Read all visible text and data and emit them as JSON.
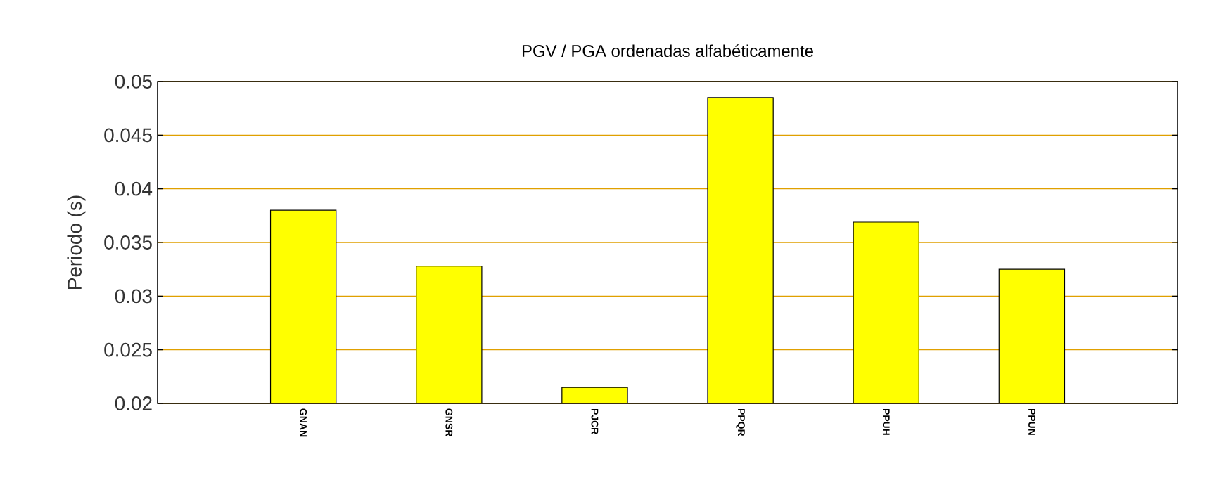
{
  "chart_data": {
    "type": "bar",
    "title": "PGV / PGA ordenadas alfabéticamente",
    "ylabel": "Periodo (s)",
    "categories": [
      "GNAN",
      "GNSR",
      "PJCR",
      "PPQR",
      "PPUH",
      "PPUN"
    ],
    "values": [
      0.038,
      0.0328,
      0.0215,
      0.0485,
      0.0369,
      0.0325
    ],
    "color": "#ffff00",
    "ylim": [
      0.02,
      0.05
    ],
    "yticks": [
      0.02,
      0.025,
      0.03,
      0.035,
      0.04,
      0.045,
      0.05
    ],
    "grid": "y"
  }
}
